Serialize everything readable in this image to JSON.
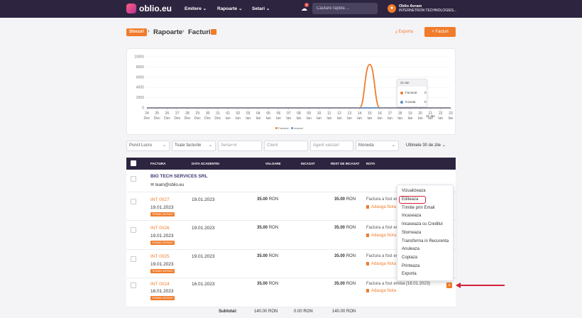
{
  "topbar": {
    "logo": "oblio.eu",
    "nav": [
      "Emitere",
      "Rapoarte",
      "Setari"
    ],
    "notifications": "6",
    "search_placeholder": "Cautare rapida ...",
    "user_name": "Oblio Avram",
    "user_company": "INTERNETRON TECHNOLOGIES..."
  },
  "breadcrumb": {
    "pill": "Stocuri",
    "items": [
      "Rapoarte",
      "Facturi"
    ]
  },
  "actions": {
    "export": "Exporta",
    "new": "+ Facturi"
  },
  "chart_data": {
    "type": "line",
    "x": [
      "24 Dec",
      "25 Dec",
      "26 Dec",
      "27 Dec",
      "28 Dec",
      "29 Dec",
      "30 Dec",
      "31 Dec",
      "01 Ian",
      "02 Ian",
      "03 Ian",
      "04 Ian",
      "05 Ian",
      "06 Ian",
      "07 Ian",
      "08 Ian",
      "09 Ian",
      "10 Ian",
      "11 Ian",
      "12 Ian",
      "13 Ian",
      "14 Ian",
      "15 Ian",
      "16 Ian",
      "17 Ian",
      "18 Ian",
      "19 Ian",
      "20 Ian",
      "21 Ian",
      "22 Ian",
      "23 Ian"
    ],
    "x_day": [
      "24",
      "25",
      "26",
      "27",
      "28",
      "29",
      "30",
      "31",
      "01",
      "02",
      "03",
      "04",
      "05",
      "06",
      "07",
      "08",
      "09",
      "10",
      "11",
      "12",
      "13",
      "14",
      "15",
      "16",
      "17",
      "18",
      "19",
      "20",
      "21",
      "22",
      "23"
    ],
    "x_month": [
      "Dec",
      "Dec",
      "Dec",
      "Dec",
      "Dec",
      "Dec",
      "Dec",
      "Dec",
      "Ian",
      "Ian",
      "Ian",
      "Ian",
      "Ian",
      "Ian",
      "Ian",
      "Ian",
      "Ian",
      "Ian",
      "Ian",
      "Ian",
      "Ian",
      "Ian",
      "Ian",
      "Ian",
      "Ian",
      "Ian",
      "Ian",
      "Ian",
      "Ian",
      "Ian",
      "Ian"
    ],
    "y_ticks": [
      "10000",
      "8000",
      "6000",
      "4000",
      "2000",
      "0"
    ],
    "ylim": [
      0,
      10000
    ],
    "series": [
      {
        "name": "Facturat",
        "color": "#f07c2b",
        "values": [
          0,
          0,
          0,
          0,
          0,
          0,
          0,
          0,
          0,
          0,
          0,
          0,
          0,
          0,
          0,
          0,
          0,
          0,
          0,
          0,
          0,
          0,
          8500,
          0,
          0,
          0,
          0,
          0,
          0,
          0,
          0
        ]
      },
      {
        "name": "Incasat",
        "color": "#5b8fc9",
        "values": [
          0,
          0,
          0,
          0,
          0,
          0,
          0,
          0,
          0,
          0,
          0,
          0,
          0,
          0,
          0,
          0,
          0,
          0,
          0,
          0,
          0,
          0,
          0,
          0,
          0,
          0,
          0,
          0,
          0,
          0,
          0
        ]
      }
    ],
    "tooltip": {
      "title": "21 Ian",
      "rows": [
        {
          "label": "Facturat",
          "value": "0"
        },
        {
          "label": "Incasat",
          "value": "0"
        }
      ],
      "x_label": "21 Ian"
    }
  },
  "filters": [
    "Punct Lucru",
    "Toate facturile",
    "Seria+nr",
    "Client",
    "Agent vanzari",
    "Moneda"
  ],
  "period": "Ultimele 30 de zile",
  "columns": [
    "FACTURA",
    "DATA SCADENTEI",
    "VALOARE",
    "INCASAT",
    "REST DE INCASAT",
    "NOTA"
  ],
  "client": {
    "name": "BIO TECH SERVICES SRL",
    "email": "team@oblio.eu"
  },
  "rows": [
    {
      "number": "INT 0027",
      "date": "19.01.2023",
      "badge": "TERMEN DEPASIT",
      "due": "19.01.2023",
      "value": "35.00",
      "rest": "35.00",
      "currency": "RON",
      "note": "Factura a fost emisa",
      "add_note": "Adauga Nota"
    },
    {
      "number": "INT 0026",
      "date": "19.01.2023",
      "badge": "TERMEN DEPASIT",
      "due": "19.01.2023",
      "value": "35.00",
      "rest": "35.00",
      "currency": "RON",
      "note": "Factura a fost emisa",
      "add_note": "Adauga Nota"
    },
    {
      "number": "INT 0025",
      "date": "19.01.2023",
      "badge": "TERMEN DEPASIT",
      "due": "19.01.2023",
      "value": "35.00",
      "rest": "35.00",
      "currency": "RON",
      "note": "Factura a fost emisa",
      "add_note": "Adauga Nota"
    },
    {
      "number": "INT 0024",
      "date": "16.01.2023",
      "badge": "TERMEN DEPASIT",
      "due": "16.01.2023",
      "value": "35.00",
      "rest": "35.00",
      "currency": "RON",
      "note": "Factura a fost emisa (16.01.2023)",
      "add_note": "Adauga Nota"
    }
  ],
  "menu": [
    "Vizualizeaza",
    "Editeaza",
    "Trimite prin Email",
    "Incaseaza",
    "Incaseaza cu Creditul",
    "Storneaza",
    "Transforma in Recurenta",
    "Anuleaza",
    "Copiaza",
    "Printeaza",
    "Exporta"
  ],
  "subtotal": {
    "label": "Subtotal:",
    "value": "140.00 RON",
    "incasat": "0.00 RON",
    "rest": "140.00 RON"
  }
}
